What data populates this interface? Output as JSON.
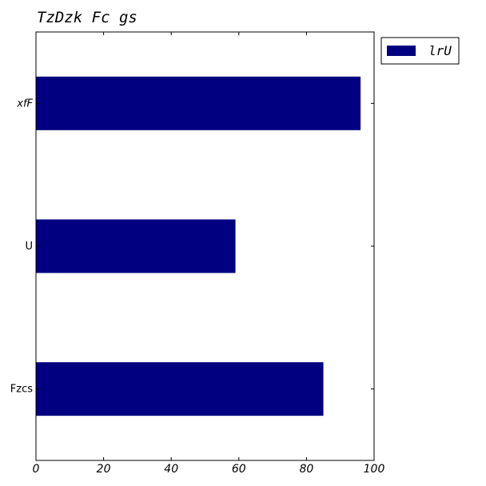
{
  "chart_data": {
    "type": "bar",
    "orientation": "horizontal",
    "title": "TzDzk Fc gs",
    "categories": [
      "xfF",
      "U",
      "Fzcs"
    ],
    "series": [
      {
        "name": "lrU",
        "values": [
          96,
          59,
          85
        ],
        "color": "#000080"
      }
    ],
    "xlim": [
      0,
      100
    ],
    "xticks": [
      0,
      20,
      40,
      60,
      80,
      100
    ],
    "xlabel": "",
    "ylabel": "",
    "grid": false,
    "legend_position": "outside-top-right"
  }
}
